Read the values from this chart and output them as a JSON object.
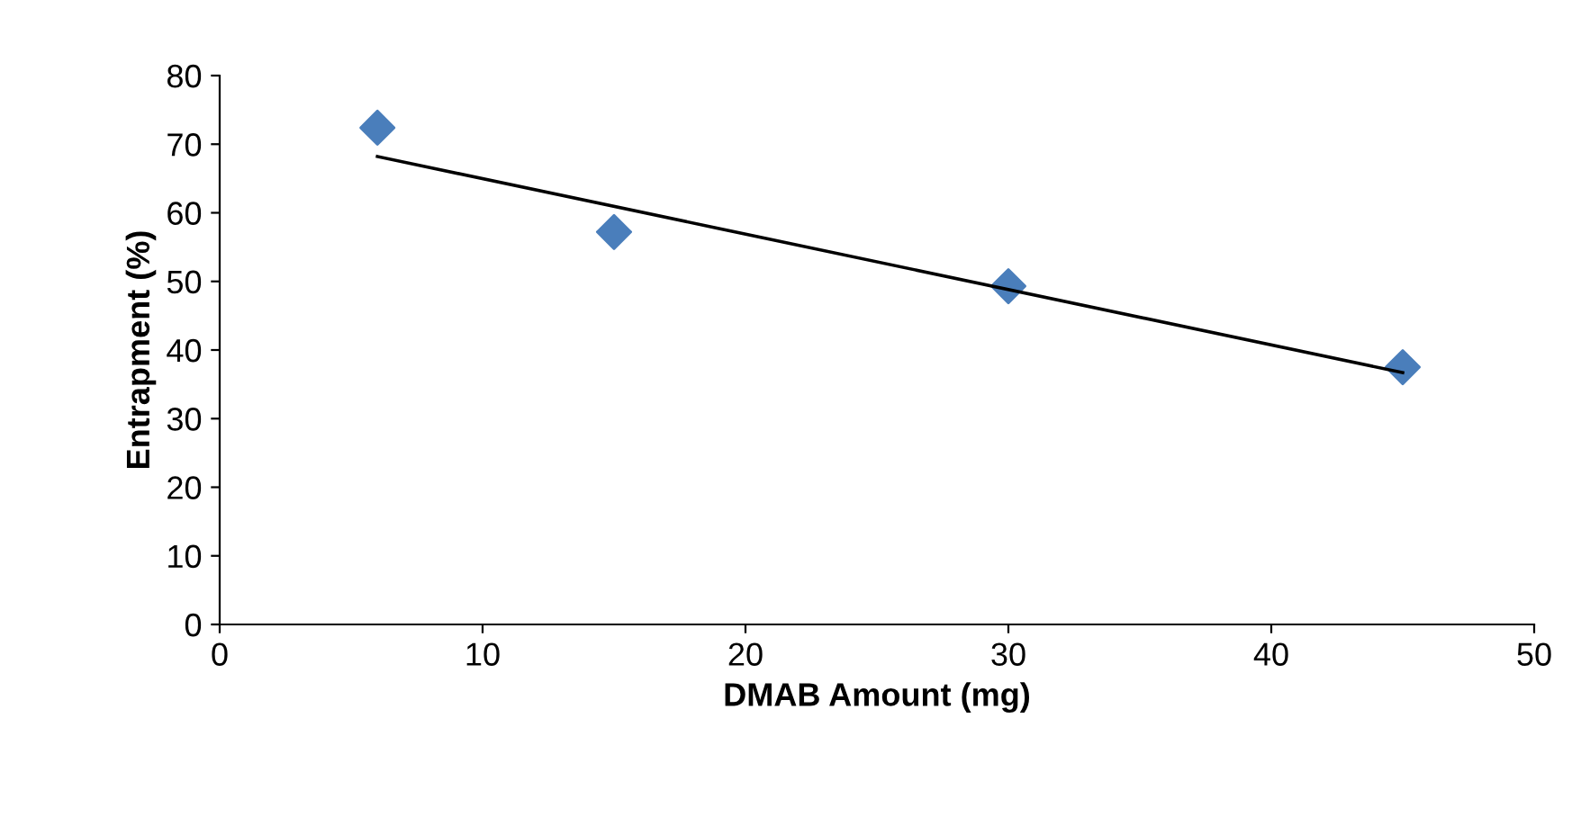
{
  "chart_data": {
    "type": "scatter",
    "xlabel": "DMAB Amount (mg)",
    "ylabel": "Entrapment (%)",
    "x": [
      6,
      15,
      30,
      45
    ],
    "series": [
      {
        "color": "#4a7ebb",
        "values": [
          72.4,
          57.2,
          49.3,
          37.5
        ],
        "marker": "diamond"
      },
      {
        "type": "line",
        "color": "#000000",
        "x": [
          6,
          45
        ],
        "values": [
          68.2,
          36.7
        ],
        "marker": "none",
        "line_style": "solid"
      }
    ],
    "xlim": [
      0,
      50
    ],
    "xticks": [
      0,
      10,
      20,
      30,
      40,
      50
    ],
    "ylim": [
      0,
      80
    ],
    "yticks": [
      0,
      10,
      20,
      30,
      40,
      50,
      60,
      70,
      80
    ],
    "grid": false,
    "legend": false
  }
}
